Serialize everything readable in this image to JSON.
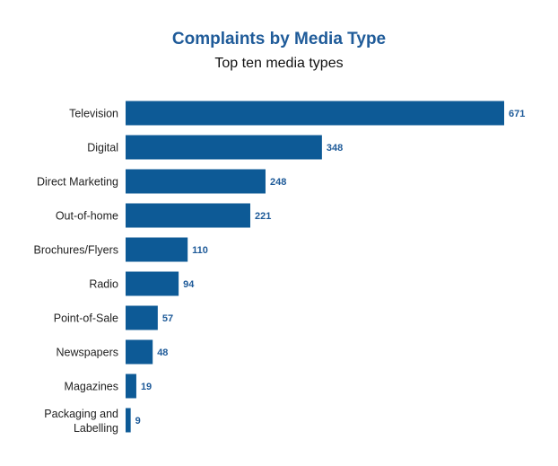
{
  "chart_data": {
    "type": "bar",
    "orientation": "horizontal",
    "title": "Complaints by Media Type",
    "subtitle": "Top ten media types",
    "categories": [
      "Television",
      "Digital",
      "Direct Marketing",
      "Out-of-home",
      "Brochures/Flyers",
      "Radio",
      "Point-of-Sale",
      "Newspapers",
      "Magazines",
      "Packaging and Labelling"
    ],
    "values": [
      671,
      348,
      248,
      221,
      110,
      94,
      57,
      48,
      19,
      9
    ],
    "xlim": [
      0,
      671
    ],
    "grid": false,
    "bar_color": "#0d5a96",
    "label_color": "#1f5b99"
  }
}
